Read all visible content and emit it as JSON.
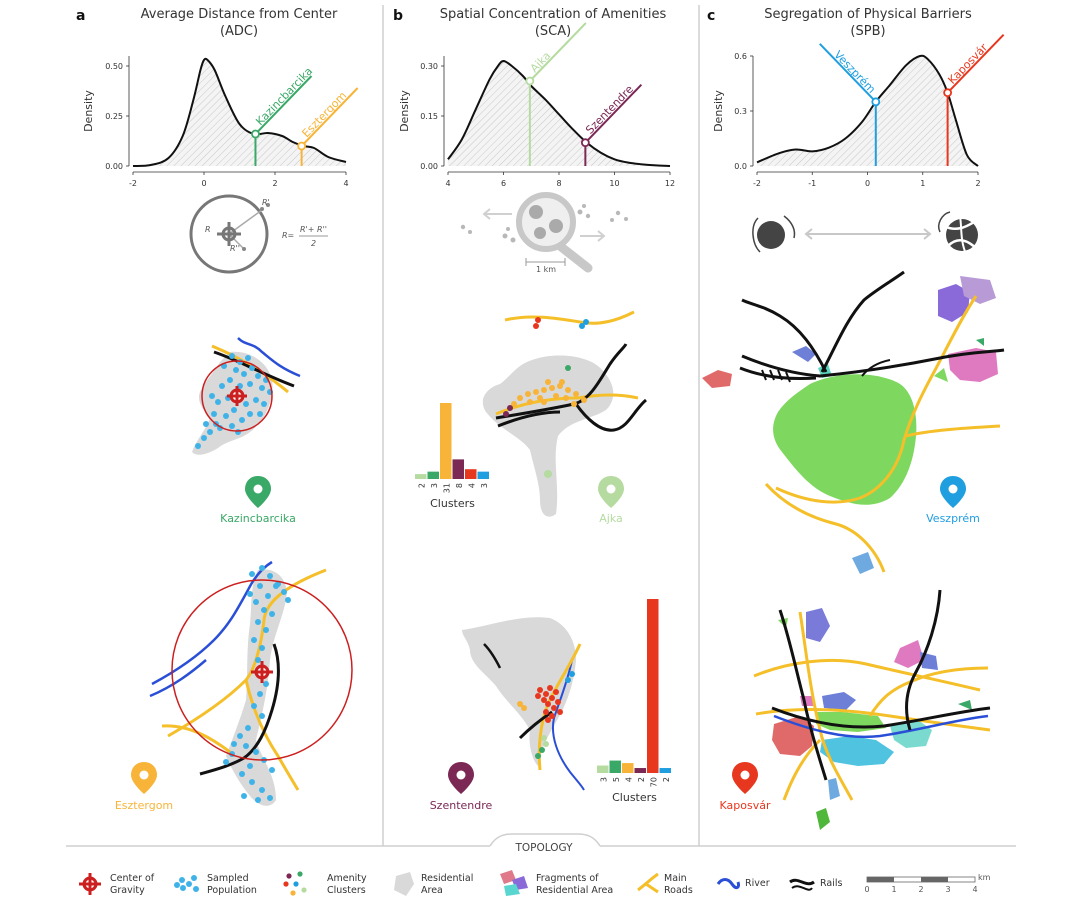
{
  "colors": {
    "kazincbarcika": "#3aa867",
    "esztergom": "#f7b439",
    "ajka": "#b5dba0",
    "szentendre": "#7b2855",
    "veszprem": "#1f9ee0",
    "kaposvar": "#e8371f",
    "river": "#2a4fd6",
    "rails": "#111111",
    "roads": "#f5bf2a",
    "residential": "#d9d9d9",
    "gravity": "#cc1f1f",
    "population": "#3fb3e8"
  },
  "panels": {
    "a": {
      "letter": "a",
      "title": "Average Distance from Center",
      "subtitle": "(ADC)",
      "ylabel": "Density",
      "marker1": "Kazincbarcika",
      "marker2": "Esztergom",
      "formula_r1": "R",
      "formula_r2": "R'",
      "formula_r3": "R''",
      "formula_lhs": "R=",
      "formula_num": "R'+ R''",
      "formula_den": "2",
      "city_top": "Kazincbarcika",
      "city_bottom": "Esztergom"
    },
    "b": {
      "letter": "b",
      "title": "Spatial Concentration of Amenities",
      "subtitle": "(SCA)",
      "ylabel": "Density",
      "marker1": "Ajka",
      "marker2": "Szentendre",
      "scale_label": "1 km",
      "city_top": "Ajka",
      "city_bottom": "Szentendre",
      "clusters_label": "Clusters"
    },
    "c": {
      "letter": "c",
      "title": "Segregation of Physical Barriers",
      "subtitle": "(SPB)",
      "ylabel": "Density",
      "marker1": "Veszprém",
      "marker2": "Kaposvár",
      "city_top": "Veszprém",
      "city_bottom": "Kaposvár"
    }
  },
  "chart_data": [
    {
      "type": "line",
      "panel": "a",
      "title": "Average Distance from Center",
      "subtitle": "(ADC)",
      "xlabel": "",
      "ylabel": "Density",
      "xlim": [
        -2,
        4
      ],
      "ylim": [
        0,
        0.55
      ],
      "xticks": [
        -2,
        0,
        2,
        4
      ],
      "yticks": [
        0.0,
        0.25,
        0.5
      ],
      "ytick_labels": [
        "0.00",
        "0.25",
        "0.50"
      ],
      "curve": {
        "x": [
          -2.0,
          -1.5,
          -1.0,
          -0.6,
          -0.3,
          -0.1,
          0.0,
          0.1,
          0.3,
          0.6,
          1.0,
          1.4,
          1.8,
          2.2,
          2.5,
          2.8,
          3.1,
          3.5,
          4.0
        ],
        "y": [
          0.0,
          0.005,
          0.04,
          0.15,
          0.33,
          0.48,
          0.53,
          0.53,
          0.48,
          0.35,
          0.21,
          0.16,
          0.165,
          0.15,
          0.12,
          0.1,
          0.09,
          0.045,
          0.02
        ]
      },
      "markers": [
        {
          "label": "Kazincbarcika",
          "x": 1.45,
          "y": 0.16,
          "color": "#3aa867"
        },
        {
          "label": "Esztergom",
          "x": 2.75,
          "y": 0.1,
          "color": "#f7b439"
        }
      ]
    },
    {
      "type": "line",
      "panel": "b",
      "title": "Spatial Concentration of Amenities",
      "subtitle": "(SCA)",
      "xlabel": "",
      "ylabel": "Density",
      "xlim": [
        4,
        12
      ],
      "ylim": [
        0,
        0.33
      ],
      "xticks": [
        4,
        6,
        8,
        10,
        12
      ],
      "yticks": [
        0.0,
        0.15,
        0.3
      ],
      "ytick_labels": [
        "0.00",
        "0.15",
        "0.30"
      ],
      "curve": {
        "x": [
          4.0,
          4.5,
          5.0,
          5.5,
          5.8,
          6.0,
          6.3,
          6.7,
          7.0,
          7.5,
          8.0,
          8.5,
          9.0,
          9.5,
          10.0,
          10.5,
          11.0,
          11.5,
          12.0
        ],
        "y": [
          0.02,
          0.08,
          0.17,
          0.26,
          0.3,
          0.315,
          0.3,
          0.27,
          0.24,
          0.2,
          0.155,
          0.11,
          0.07,
          0.04,
          0.02,
          0.01,
          0.005,
          0.002,
          0.0
        ]
      },
      "markers": [
        {
          "label": "Ajka",
          "x": 6.95,
          "y": 0.255,
          "color": "#b5dba0"
        },
        {
          "label": "Szentendre",
          "x": 8.95,
          "y": 0.07,
          "color": "#7b2855"
        }
      ]
    },
    {
      "type": "line",
      "panel": "c",
      "title": "Segregation of Physical Barriers",
      "subtitle": "(SPB)",
      "xlabel": "",
      "ylabel": "Density",
      "xlim": [
        -2,
        2
      ],
      "ylim": [
        0,
        0.6
      ],
      "xticks": [
        -2,
        -1,
        0,
        1,
        2
      ],
      "yticks": [
        0.0,
        0.3,
        0.6
      ],
      "ytick_labels": [
        "0.0",
        "0.3",
        "0.6"
      ],
      "curve": {
        "x": [
          -2.0,
          -1.6,
          -1.3,
          -1.0,
          -0.7,
          -0.4,
          -0.1,
          0.15,
          0.4,
          0.7,
          0.95,
          1.1,
          1.3,
          1.45,
          1.6,
          1.8,
          2.0
        ],
        "y": [
          0.02,
          0.07,
          0.09,
          0.08,
          0.1,
          0.15,
          0.24,
          0.35,
          0.44,
          0.55,
          0.6,
          0.58,
          0.5,
          0.4,
          0.25,
          0.06,
          0.0
        ]
      },
      "markers": [
        {
          "label": "Veszprém",
          "x": 0.15,
          "y": 0.35,
          "color": "#1f9ee0"
        },
        {
          "label": "Kaposvár",
          "x": 1.45,
          "y": 0.4,
          "color": "#e8371f"
        }
      ]
    },
    {
      "type": "bar",
      "panel": "b-ajka",
      "title": "",
      "xlabel": "Clusters",
      "categories": [
        "2",
        "3",
        "31",
        "8",
        "4",
        "3"
      ],
      "values": [
        2,
        3,
        31,
        8,
        4,
        3
      ],
      "colors": [
        "#b5dba0",
        "#3aa867",
        "#f7b439",
        "#7b2855",
        "#e8371f",
        "#1f9ee0"
      ]
    },
    {
      "type": "bar",
      "panel": "b-szentendre",
      "title": "",
      "xlabel": "Clusters",
      "categories": [
        "3",
        "5",
        "4",
        "2",
        "70",
        "2"
      ],
      "values": [
        3,
        5,
        4,
        2,
        70,
        2
      ],
      "colors": [
        "#b5dba0",
        "#3aa867",
        "#f7b439",
        "#7b2855",
        "#e8371f",
        "#1f9ee0"
      ]
    }
  ],
  "topology_label": "TOPOLOGY",
  "legend": {
    "gravity": [
      "Center of",
      "Gravity"
    ],
    "population": [
      "Sampled",
      "Population"
    ],
    "amenity": [
      "Amenity",
      "Clusters"
    ],
    "residential": [
      "Residential",
      "Area"
    ],
    "fragments": [
      "Fragments of",
      "Residential Area"
    ],
    "roads": [
      "Main",
      "Roads"
    ],
    "river": "River",
    "rails": "Rails",
    "scale_ticks": [
      "0",
      "1",
      "2",
      "3",
      "4"
    ],
    "scale_unit": "km"
  }
}
